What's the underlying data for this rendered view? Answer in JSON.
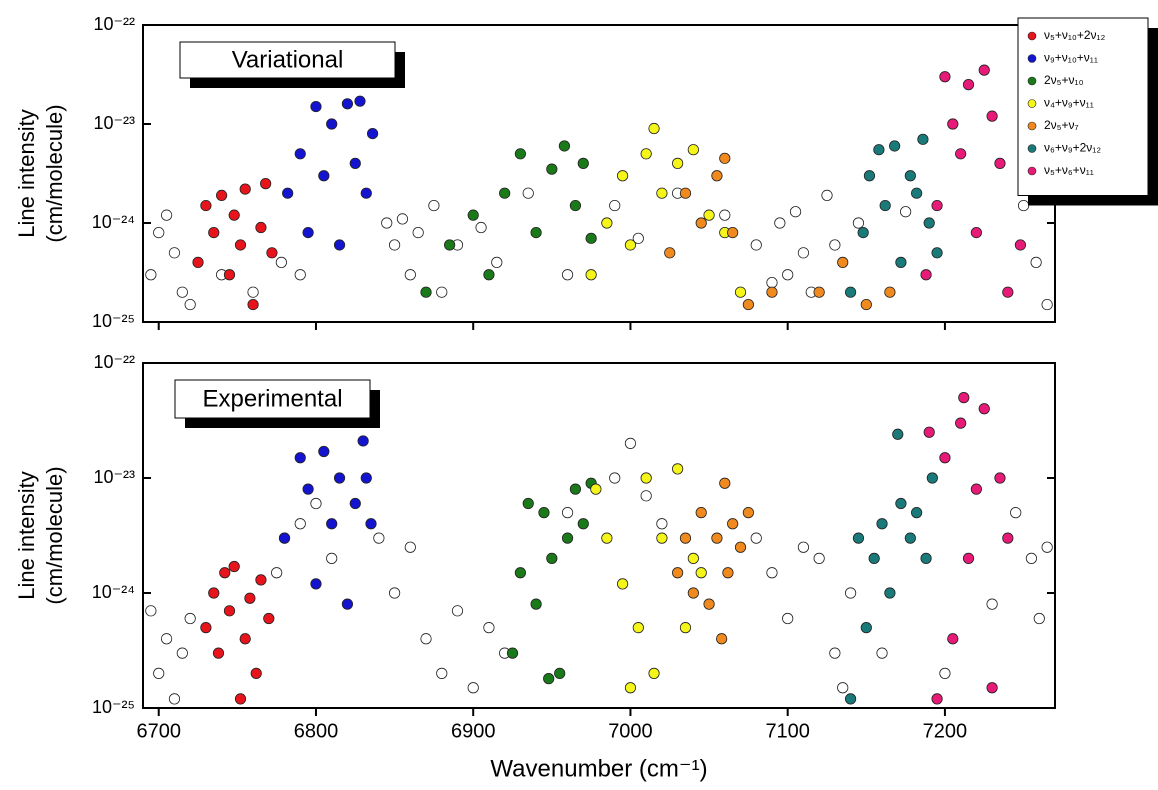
{
  "chart_data": [
    {
      "type": "scatter",
      "label": "Variational",
      "ylabel": [
        "Line intensity",
        "(cm/molecule)"
      ],
      "log_y": true,
      "xlim": [
        6690,
        7270
      ],
      "ylim": [
        1e-25,
        1e-22
      ],
      "xticks": [
        6700,
        6800,
        6900,
        7000,
        7100,
        7200
      ],
      "yticks": [
        {
          "value": 1e-25,
          "label": "10⁻²⁵"
        },
        {
          "value": 1e-24,
          "label": "10⁻²⁴"
        },
        {
          "value": 1e-23,
          "label": "10⁻²³"
        },
        {
          "value": 1e-22,
          "label": "10⁻²²"
        }
      ],
      "legend": "upper right",
      "series": [
        {
          "color": "#ffffff",
          "x": [
            6695,
            6700,
            6705,
            6710,
            6715,
            6720,
            6740,
            6760,
            6778,
            6790,
            6845,
            6850,
            6855,
            6860,
            6865,
            6875,
            6880,
            6890,
            6905,
            6915,
            6935,
            6960,
            6990,
            7005,
            7030,
            7060,
            7080,
            7090,
            7095,
            7100,
            7105,
            7110,
            7115,
            7125,
            7130,
            7145,
            7175,
            7250,
            7258,
            7265
          ],
          "values": [
            3e-25,
            8e-25,
            1.2e-24,
            5e-25,
            2e-25,
            1.5e-25,
            3e-25,
            2e-25,
            4e-25,
            3e-25,
            1e-24,
            6e-25,
            1.1e-24,
            3e-25,
            8e-25,
            1.5e-24,
            2e-25,
            6e-25,
            9e-25,
            4e-25,
            2e-24,
            3e-25,
            1.5e-24,
            7e-25,
            2e-24,
            1.2e-24,
            6e-25,
            2.5e-25,
            1e-24,
            3e-25,
            1.3e-24,
            5e-25,
            2e-25,
            1.9e-24,
            6e-25,
            1e-24,
            1.3e-24,
            1.5e-24,
            4e-25,
            1.5e-25
          ]
        },
        {
          "name": "ν₅+ν₁₀+2ν₁₂",
          "color": "#e8141c",
          "x": [
            6725,
            6730,
            6735,
            6740,
            6745,
            6748,
            6752,
            6755,
            6760,
            6765,
            6768,
            6772
          ],
          "values": [
            4e-25,
            1.5e-24,
            8e-25,
            1.9e-24,
            3e-25,
            1.2e-24,
            6e-25,
            2.2e-24,
            1.5e-25,
            9e-25,
            2.5e-24,
            5e-25
          ]
        },
        {
          "name": "ν₉+ν₁₀+ν₁₁",
          "color": "#1414d0",
          "x": [
            6782,
            6790,
            6795,
            6800,
            6805,
            6810,
            6815,
            6820,
            6825,
            6828,
            6832,
            6836
          ],
          "values": [
            2e-24,
            5e-24,
            8e-25,
            1.5e-23,
            3e-24,
            1e-23,
            6e-25,
            1.6e-23,
            4e-24,
            1.7e-23,
            2e-24,
            8e-24
          ]
        },
        {
          "name": "2ν₅+ν₁₀",
          "color": "#1a7a1a",
          "x": [
            6870,
            6885,
            6900,
            6910,
            6920,
            6930,
            6940,
            6950,
            6958,
            6965,
            6970,
            6975
          ],
          "values": [
            2e-25,
            6e-25,
            1.2e-24,
            3e-25,
            2e-24,
            5e-24,
            8e-25,
            3.5e-24,
            6e-24,
            1.5e-24,
            4e-24,
            7e-25
          ]
        },
        {
          "name": "ν₄+ν₉+ν₁₁",
          "color": "#f5f51a",
          "x": [
            6975,
            6985,
            6995,
            7000,
            7010,
            7015,
            7020,
            7030,
            7040,
            7050,
            7060,
            7070
          ],
          "values": [
            3e-25,
            1e-24,
            3e-24,
            6e-25,
            5e-24,
            9e-24,
            2e-24,
            4e-24,
            5.5e-24,
            1.2e-24,
            8e-25,
            2e-25
          ]
        },
        {
          "name": "2ν₅+ν₇",
          "color": "#f08a1e",
          "x": [
            7025,
            7035,
            7045,
            7055,
            7060,
            7065,
            7075,
            7090,
            7120,
            7135,
            7150,
            7165
          ],
          "values": [
            5e-25,
            2e-24,
            1e-24,
            3e-24,
            4.5e-24,
            8e-25,
            1.5e-25,
            2e-25,
            2e-25,
            4e-25,
            1.5e-25,
            2e-25
          ]
        },
        {
          "name": "ν₆+ν₉+2ν₁₂",
          "color": "#1a7a7a",
          "x": [
            7140,
            7148,
            7152,
            7158,
            7162,
            7168,
            7172,
            7178,
            7182,
            7186,
            7190,
            7195
          ],
          "values": [
            2e-25,
            8e-25,
            3e-24,
            5.5e-24,
            1.5e-24,
            6e-24,
            4e-25,
            3e-24,
            2e-24,
            7e-24,
            1e-24,
            5e-25
          ]
        },
        {
          "name": "ν₅+ν₆+ν₁₁",
          "color": "#e81a78",
          "x": [
            7188,
            7195,
            7200,
            7205,
            7210,
            7215,
            7220,
            7225,
            7230,
            7235,
            7240,
            7248
          ],
          "values": [
            3e-25,
            1.5e-24,
            3e-23,
            1e-23,
            5e-24,
            2.5e-23,
            8e-25,
            3.5e-23,
            1.2e-23,
            4e-24,
            2e-25,
            6e-25
          ]
        }
      ]
    },
    {
      "type": "scatter",
      "label": "Experimental",
      "ylabel": [
        "Line intensity",
        "(cm/molecule)"
      ],
      "xlabel": "Wavenumber (cm⁻¹)",
      "log_y": true,
      "xlim": [
        6690,
        7270
      ],
      "ylim": [
        1e-25,
        1e-22
      ],
      "xticks": [
        6700,
        6800,
        6900,
        7000,
        7100,
        7200
      ],
      "yticks": [
        {
          "value": 1e-25,
          "label": "10⁻²⁵"
        },
        {
          "value": 1e-24,
          "label": "10⁻²⁴"
        },
        {
          "value": 1e-23,
          "label": "10⁻²³"
        },
        {
          "value": 1e-22,
          "label": "10⁻²²"
        }
      ],
      "series": [
        {
          "color": "#ffffff",
          "x": [
            6695,
            6700,
            6705,
            6710,
            6715,
            6720,
            6775,
            6780,
            6790,
            6800,
            6810,
            6840,
            6850,
            6860,
            6870,
            6880,
            6890,
            6900,
            6910,
            6920,
            6960,
            6990,
            7000,
            7010,
            7020,
            7080,
            7090,
            7100,
            7110,
            7120,
            7130,
            7135,
            7140,
            7160,
            7200,
            7230,
            7245,
            7255,
            7260,
            7265
          ],
          "values": [
            7e-25,
            2e-25,
            4e-25,
            1.2e-25,
            3e-25,
            6e-25,
            1.5e-24,
            3e-24,
            4e-24,
            6e-24,
            2e-24,
            3e-24,
            1e-24,
            2.5e-24,
            4e-25,
            2e-25,
            7e-25,
            1.5e-25,
            5e-25,
            3e-25,
            5e-24,
            1e-23,
            2e-23,
            7e-24,
            4e-24,
            3e-24,
            1.5e-24,
            6e-25,
            2.5e-24,
            2e-24,
            3e-25,
            1.5e-25,
            1e-24,
            3e-25,
            2e-25,
            8e-25,
            5e-24,
            2e-24,
            6e-25,
            2.5e-24
          ]
        },
        {
          "color": "#e8141c",
          "x": [
            6730,
            6735,
            6738,
            6742,
            6745,
            6748,
            6752,
            6755,
            6758,
            6762,
            6765,
            6770
          ],
          "values": [
            5e-25,
            1e-24,
            3e-25,
            1.5e-24,
            7e-25,
            1.7e-24,
            1.2e-25,
            4e-25,
            9e-25,
            2e-25,
            1.3e-24,
            6e-25
          ]
        },
        {
          "color": "#1414d0",
          "x": [
            6780,
            6790,
            6795,
            6800,
            6805,
            6810,
            6815,
            6820,
            6825,
            6830,
            6832,
            6835
          ],
          "values": [
            3e-24,
            1.5e-23,
            8e-24,
            1.2e-24,
            1.7e-23,
            4e-24,
            1e-23,
            8e-25,
            6e-24,
            2.1e-23,
            1e-23,
            4e-24
          ]
        },
        {
          "color": "#1a7a1a",
          "x": [
            6925,
            6930,
            6935,
            6940,
            6945,
            6950,
            6955,
            6960,
            6965,
            6970,
            6975,
            6948
          ],
          "values": [
            3e-25,
            1.5e-24,
            6e-24,
            8e-25,
            5e-24,
            2e-24,
            2e-25,
            3e-24,
            8e-24,
            4e-24,
            9e-24,
            1.8e-25
          ]
        },
        {
          "color": "#f5f51a",
          "x": [
            6978,
            6985,
            6995,
            7000,
            7005,
            7010,
            7015,
            7020,
            7030,
            7035,
            7040,
            7045
          ],
          "values": [
            8e-24,
            3e-24,
            1.2e-24,
            1.5e-25,
            5e-25,
            1e-23,
            2e-25,
            3e-24,
            1.2e-23,
            5e-25,
            2e-24,
            1.5e-24
          ]
        },
        {
          "color": "#f08a1e",
          "x": [
            7030,
            7035,
            7040,
            7045,
            7050,
            7055,
            7058,
            7060,
            7062,
            7065,
            7070,
            7075
          ],
          "values": [
            1.5e-24,
            3e-24,
            1e-24,
            5e-24,
            8e-25,
            3e-24,
            4e-25,
            9e-24,
            1.5e-24,
            4e-24,
            2.5e-24,
            5e-24
          ]
        },
        {
          "color": "#1a7a7a",
          "x": [
            7140,
            7145,
            7150,
            7155,
            7160,
            7165,
            7170,
            7172,
            7178,
            7182,
            7188,
            7192
          ],
          "values": [
            1.2e-25,
            3e-24,
            5e-25,
            2e-24,
            4e-24,
            1e-24,
            2.4e-23,
            6e-24,
            3e-24,
            5e-24,
            2e-24,
            1e-23
          ]
        },
        {
          "color": "#e81a78",
          "x": [
            7190,
            7195,
            7200,
            7205,
            7210,
            7212,
            7215,
            7220,
            7225,
            7230,
            7235,
            7240
          ],
          "values": [
            2.5e-23,
            1.2e-25,
            1.5e-23,
            4e-25,
            3e-23,
            5e-23,
            2e-24,
            8e-24,
            4e-23,
            1.5e-25,
            1e-23,
            3e-24
          ]
        }
      ]
    }
  ]
}
